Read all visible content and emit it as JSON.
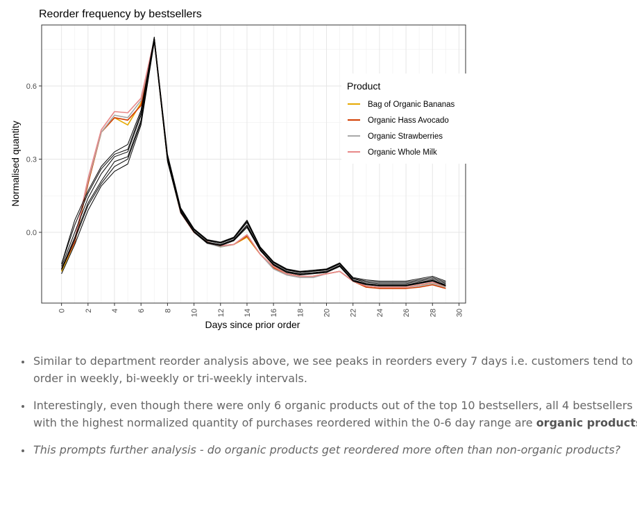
{
  "chart_data": {
    "type": "line",
    "title": "Reorder frequency by bestsellers",
    "xlabel": "Days since prior order",
    "ylabel": "Normalised quantity",
    "xlim": [
      -1.5,
      30.5
    ],
    "ylim": [
      -0.29,
      0.85
    ],
    "xticks": [
      0,
      2,
      4,
      6,
      8,
      10,
      12,
      14,
      16,
      18,
      20,
      22,
      24,
      26,
      28,
      30
    ],
    "xtick_labels": [
      "0",
      "2",
      "4",
      "6",
      "8",
      "10",
      "12",
      "14",
      "16",
      "18",
      "20",
      "22",
      "24",
      "26",
      "28",
      "30"
    ],
    "yticks": [
      0.0,
      0.3,
      0.6
    ],
    "ytick_labels": [
      "0.0",
      "0.3",
      "0.6"
    ],
    "grid": true,
    "legend_title": "Product",
    "legend_position": "top-right",
    "x": [
      0,
      1,
      2,
      3,
      4,
      5,
      6,
      7,
      8,
      9,
      10,
      11,
      12,
      13,
      14,
      15,
      16,
      17,
      18,
      19,
      20,
      21,
      22,
      23,
      24,
      25,
      26,
      27,
      28,
      29
    ],
    "series": [
      {
        "name": "Bag of Organic Bananas",
        "color": "#E6A800",
        "values": [
          -0.16,
          -0.04,
          0.2,
          0.41,
          0.47,
          0.44,
          0.53,
          0.79,
          0.3,
          0.08,
          0.0,
          -0.04,
          -0.06,
          -0.05,
          -0.02,
          -0.09,
          -0.14,
          -0.17,
          -0.18,
          -0.18,
          -0.17,
          -0.16,
          -0.2,
          -0.22,
          -0.225,
          -0.225,
          -0.225,
          -0.215,
          -0.21,
          -0.22
        ]
      },
      {
        "name": "Organic Hass Avocado",
        "color": "#D23C00",
        "values": [
          -0.15,
          -0.04,
          0.2,
          0.41,
          0.47,
          0.46,
          0.52,
          0.79,
          0.3,
          0.08,
          0.0,
          -0.04,
          -0.055,
          -0.05,
          -0.015,
          -0.09,
          -0.145,
          -0.17,
          -0.18,
          -0.18,
          -0.17,
          -0.16,
          -0.2,
          -0.225,
          -0.23,
          -0.23,
          -0.23,
          -0.225,
          -0.215,
          -0.23
        ]
      },
      {
        "name": "Organic Strawberries",
        "color": "#A8A8A8",
        "values": [
          -0.15,
          -0.03,
          0.21,
          0.41,
          0.48,
          0.47,
          0.54,
          0.79,
          0.3,
          0.08,
          0.0,
          -0.045,
          -0.06,
          -0.05,
          -0.01,
          -0.09,
          -0.15,
          -0.175,
          -0.185,
          -0.185,
          -0.17,
          -0.16,
          -0.2,
          -0.22,
          -0.225,
          -0.225,
          -0.225,
          -0.22,
          -0.21,
          -0.225
        ]
      },
      {
        "name": "Organic Whole Milk",
        "color": "#E88888",
        "values": [
          -0.15,
          -0.03,
          0.22,
          0.42,
          0.495,
          0.49,
          0.55,
          0.79,
          0.31,
          0.08,
          0.0,
          -0.04,
          -0.055,
          -0.05,
          -0.01,
          -0.09,
          -0.14,
          -0.17,
          -0.18,
          -0.18,
          -0.17,
          -0.16,
          -0.2,
          -0.22,
          -0.225,
          -0.225,
          -0.225,
          -0.215,
          -0.205,
          -0.22
        ]
      },
      {
        "color": "#000000",
        "values": [
          -0.13,
          0.05,
          0.17,
          0.27,
          0.33,
          0.36,
          0.5,
          0.8,
          0.32,
          0.1,
          0.015,
          -0.03,
          -0.04,
          -0.02,
          0.05,
          -0.06,
          -0.12,
          -0.15,
          -0.16,
          -0.155,
          -0.15,
          -0.125,
          -0.185,
          -0.195,
          -0.2,
          -0.2,
          -0.2,
          -0.19,
          -0.18,
          -0.2
        ]
      },
      {
        "color": "#000000",
        "values": [
          -0.14,
          0.0,
          0.14,
          0.24,
          0.31,
          0.33,
          0.48,
          0.79,
          0.31,
          0.09,
          0.01,
          -0.035,
          -0.045,
          -0.025,
          0.04,
          -0.065,
          -0.125,
          -0.155,
          -0.165,
          -0.16,
          -0.155,
          -0.13,
          -0.19,
          -0.205,
          -0.21,
          -0.21,
          -0.21,
          -0.2,
          -0.19,
          -0.21
        ]
      },
      {
        "color": "#000000",
        "values": [
          -0.15,
          -0.02,
          0.12,
          0.21,
          0.29,
          0.31,
          0.46,
          0.79,
          0.3,
          0.085,
          0.005,
          -0.04,
          -0.05,
          -0.03,
          0.03,
          -0.07,
          -0.13,
          -0.16,
          -0.17,
          -0.165,
          -0.16,
          -0.135,
          -0.195,
          -0.21,
          -0.215,
          -0.215,
          -0.215,
          -0.205,
          -0.195,
          -0.215
        ]
      },
      {
        "color": "#000000",
        "values": [
          -0.17,
          -0.05,
          0.09,
          0.19,
          0.25,
          0.28,
          0.44,
          0.78,
          0.29,
          0.08,
          0.0,
          -0.045,
          -0.055,
          -0.035,
          0.02,
          -0.075,
          -0.135,
          -0.165,
          -0.175,
          -0.17,
          -0.165,
          -0.14,
          -0.2,
          -0.215,
          -0.22,
          -0.22,
          -0.22,
          -0.21,
          -0.2,
          -0.22
        ]
      },
      {
        "color": "#000000",
        "values": [
          -0.13,
          0.03,
          0.16,
          0.26,
          0.32,
          0.34,
          0.49,
          0.8,
          0.31,
          0.095,
          0.012,
          -0.032,
          -0.042,
          -0.022,
          0.045,
          -0.062,
          -0.122,
          -0.152,
          -0.162,
          -0.158,
          -0.152,
          -0.128,
          -0.188,
          -0.2,
          -0.205,
          -0.205,
          -0.205,
          -0.195,
          -0.185,
          -0.205
        ]
      },
      {
        "color": "#000000",
        "values": [
          -0.155,
          -0.03,
          0.11,
          0.2,
          0.27,
          0.3,
          0.45,
          0.785,
          0.295,
          0.082,
          0.003,
          -0.042,
          -0.052,
          -0.032,
          0.025,
          -0.072,
          -0.132,
          -0.162,
          -0.172,
          -0.168,
          -0.162,
          -0.138,
          -0.198,
          -0.212,
          -0.218,
          -0.218,
          -0.218,
          -0.208,
          -0.198,
          -0.218
        ]
      }
    ]
  },
  "bullets": {
    "item1": "Similar to department reorder analysis above, we see peaks in reorders every 7 days i.e. customers tend to order in weekly, bi-weekly or tri-weekly intervals.",
    "item2_text": "Interestingly, even though there were only 6 organic products out of the top 10 bestsellers, all 4 bestsellers with the highest normalized quantity of purchases reordered within the 0-6 day range are ",
    "item2_bold": "organic products",
    "item2_end": ".",
    "item3": "This prompts further analysis - do organic products get reordered more often than non-organic products?"
  }
}
